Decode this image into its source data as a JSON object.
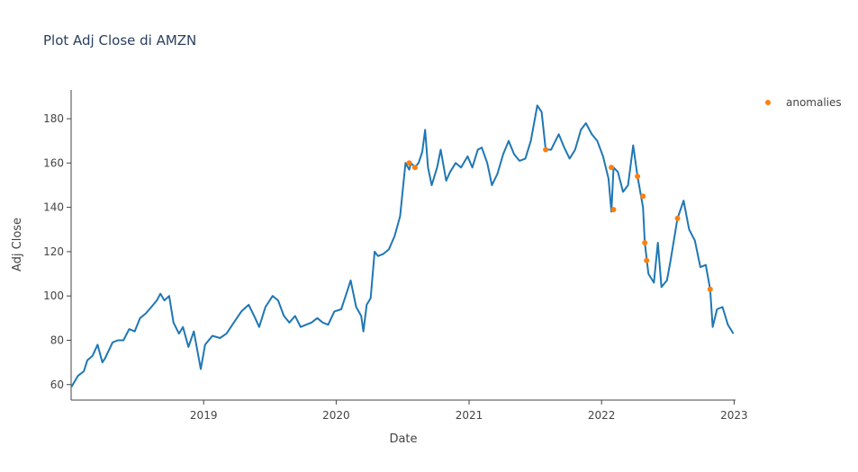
{
  "chart_data": {
    "type": "line",
    "title": "Plot Adj Close di AMZN",
    "xlabel": "Date",
    "ylabel": "Adj Close",
    "xlim": [
      "2018-01-01",
      "2023-01-05"
    ],
    "ylim": [
      53,
      193
    ],
    "x_ticks": [
      {
        "date": "2019-01-01",
        "label": "2019"
      },
      {
        "date": "2020-01-01",
        "label": "2020"
      },
      {
        "date": "2021-01-01",
        "label": "2021"
      },
      {
        "date": "2022-01-01",
        "label": "2022"
      },
      {
        "date": "2023-01-01",
        "label": "2023"
      }
    ],
    "y_ticks": [
      60,
      80,
      100,
      120,
      140,
      160,
      180
    ],
    "grid": false,
    "legend": {
      "position": "top-right",
      "entries": [
        "anomalies"
      ]
    },
    "series": [
      {
        "name": "",
        "color": "#1f77b4",
        "mode": "line",
        "points": [
          [
            "2018-01-02",
            59
          ],
          [
            "2018-01-20",
            64
          ],
          [
            "2018-02-05",
            66
          ],
          [
            "2018-02-15",
            71
          ],
          [
            "2018-03-01",
            73
          ],
          [
            "2018-03-15",
            78
          ],
          [
            "2018-03-28",
            70
          ],
          [
            "2018-04-05",
            72
          ],
          [
            "2018-04-25",
            79
          ],
          [
            "2018-05-10",
            80
          ],
          [
            "2018-05-25",
            80
          ],
          [
            "2018-06-10",
            85
          ],
          [
            "2018-06-25",
            84
          ],
          [
            "2018-07-10",
            90
          ],
          [
            "2018-07-25",
            92
          ],
          [
            "2018-08-10",
            95
          ],
          [
            "2018-08-25",
            98
          ],
          [
            "2018-09-04",
            101
          ],
          [
            "2018-09-15",
            98
          ],
          [
            "2018-09-28",
            100
          ],
          [
            "2018-10-10",
            88
          ],
          [
            "2018-10-25",
            83
          ],
          [
            "2018-11-05",
            86
          ],
          [
            "2018-11-20",
            77
          ],
          [
            "2018-12-05",
            84
          ],
          [
            "2018-12-24",
            67
          ],
          [
            "2019-01-05",
            78
          ],
          [
            "2019-01-25",
            82
          ],
          [
            "2019-02-15",
            81
          ],
          [
            "2019-03-05",
            83
          ],
          [
            "2019-03-25",
            88
          ],
          [
            "2019-04-15",
            93
          ],
          [
            "2019-05-05",
            96
          ],
          [
            "2019-05-20",
            91
          ],
          [
            "2019-06-03",
            86
          ],
          [
            "2019-06-20",
            95
          ],
          [
            "2019-07-10",
            100
          ],
          [
            "2019-07-25",
            98
          ],
          [
            "2019-08-10",
            91
          ],
          [
            "2019-08-25",
            88
          ],
          [
            "2019-09-10",
            91
          ],
          [
            "2019-09-25",
            86
          ],
          [
            "2019-10-10",
            87
          ],
          [
            "2019-10-25",
            88
          ],
          [
            "2019-11-10",
            90
          ],
          [
            "2019-11-25",
            88
          ],
          [
            "2019-12-10",
            87
          ],
          [
            "2019-12-27",
            93
          ],
          [
            "2020-01-15",
            94
          ],
          [
            "2020-01-31",
            102
          ],
          [
            "2020-02-10",
            107
          ],
          [
            "2020-02-25",
            95
          ],
          [
            "2020-03-10",
            91
          ],
          [
            "2020-03-16",
            84
          ],
          [
            "2020-03-25",
            96
          ],
          [
            "2020-04-05",
            99
          ],
          [
            "2020-04-16",
            120
          ],
          [
            "2020-04-25",
            118
          ],
          [
            "2020-05-10",
            119
          ],
          [
            "2020-05-25",
            121
          ],
          [
            "2020-06-10",
            127
          ],
          [
            "2020-06-25",
            136
          ],
          [
            "2020-07-10",
            160
          ],
          [
            "2020-07-20",
            157
          ],
          [
            "2020-07-25",
            160
          ],
          [
            "2020-08-05",
            158
          ],
          [
            "2020-08-15",
            160
          ],
          [
            "2020-08-25",
            165
          ],
          [
            "2020-09-02",
            175
          ],
          [
            "2020-09-10",
            158
          ],
          [
            "2020-09-20",
            150
          ],
          [
            "2020-10-05",
            158
          ],
          [
            "2020-10-15",
            166
          ],
          [
            "2020-10-30",
            152
          ],
          [
            "2020-11-10",
            156
          ],
          [
            "2020-11-25",
            160
          ],
          [
            "2020-12-10",
            158
          ],
          [
            "2020-12-28",
            163
          ],
          [
            "2021-01-10",
            158
          ],
          [
            "2021-01-25",
            166
          ],
          [
            "2021-02-05",
            167
          ],
          [
            "2021-02-20",
            160
          ],
          [
            "2021-03-05",
            150
          ],
          [
            "2021-03-20",
            155
          ],
          [
            "2021-04-05",
            164
          ],
          [
            "2021-04-20",
            170
          ],
          [
            "2021-05-05",
            164
          ],
          [
            "2021-05-20",
            161
          ],
          [
            "2021-06-05",
            162
          ],
          [
            "2021-06-20",
            170
          ],
          [
            "2021-07-08",
            186
          ],
          [
            "2021-07-20",
            183
          ],
          [
            "2021-07-31",
            166
          ],
          [
            "2021-08-15",
            166
          ],
          [
            "2021-09-05",
            173
          ],
          [
            "2021-09-20",
            167
          ],
          [
            "2021-10-05",
            162
          ],
          [
            "2021-10-20",
            166
          ],
          [
            "2021-11-05",
            175
          ],
          [
            "2021-11-19",
            178
          ],
          [
            "2021-12-05",
            173
          ],
          [
            "2021-12-20",
            170
          ],
          [
            "2022-01-05",
            163
          ],
          [
            "2022-01-20",
            153
          ],
          [
            "2022-01-28",
            138
          ],
          [
            "2022-02-03",
            158
          ],
          [
            "2022-02-15",
            156
          ],
          [
            "2022-03-01",
            147
          ],
          [
            "2022-03-15",
            150
          ],
          [
            "2022-03-29",
            168
          ],
          [
            "2022-04-10",
            154
          ],
          [
            "2022-04-25",
            140
          ],
          [
            "2022-04-30",
            124
          ],
          [
            "2022-05-10",
            110
          ],
          [
            "2022-05-25",
            106
          ],
          [
            "2022-06-05",
            124
          ],
          [
            "2022-06-15",
            104
          ],
          [
            "2022-06-30",
            107
          ],
          [
            "2022-07-10",
            116
          ],
          [
            "2022-07-29",
            135
          ],
          [
            "2022-08-15",
            143
          ],
          [
            "2022-08-30",
            130
          ],
          [
            "2022-09-15",
            125
          ],
          [
            "2022-09-30",
            113
          ],
          [
            "2022-10-15",
            114
          ],
          [
            "2022-10-27",
            103
          ],
          [
            "2022-11-03",
            86
          ],
          [
            "2022-11-15",
            94
          ],
          [
            "2022-11-30",
            95
          ],
          [
            "2022-12-15",
            87
          ],
          [
            "2022-12-30",
            83
          ]
        ]
      },
      {
        "name": "anomalies",
        "color": "#ff7f0e",
        "mode": "markers",
        "points": [
          [
            "2020-07-20",
            160
          ],
          [
            "2020-08-05",
            158
          ],
          [
            "2021-07-31",
            166
          ],
          [
            "2022-01-28",
            158
          ],
          [
            "2022-02-03",
            139
          ],
          [
            "2022-04-10",
            154
          ],
          [
            "2022-04-25",
            145
          ],
          [
            "2022-04-30",
            124
          ],
          [
            "2022-05-05",
            116
          ],
          [
            "2022-07-29",
            135
          ],
          [
            "2022-10-27",
            103
          ]
        ]
      }
    ]
  }
}
